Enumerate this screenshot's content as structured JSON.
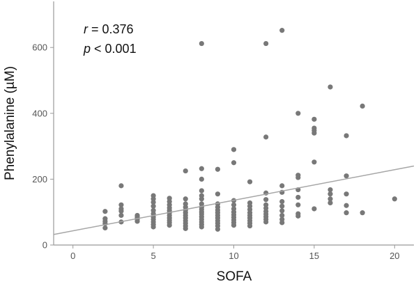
{
  "chart_data": {
    "type": "scatter",
    "xlabel": "SOFA",
    "ylabel": "Phenylalanine (µM)",
    "xlim": [
      -1.2,
      21.2
    ],
    "ylim": [
      0,
      740
    ],
    "xticks": [
      0,
      5,
      10,
      15,
      20
    ],
    "yticks": [
      0,
      200,
      400,
      600
    ],
    "grid": false,
    "point_color": "#787878",
    "line_color": "#a6a6a6",
    "annotation": {
      "r_label": "r",
      "r_text": " = 0.376",
      "p_label": "p",
      "p_text": " < 0.001"
    },
    "fit_line": {
      "x": [
        -1.2,
        21.2
      ],
      "y": [
        32,
        240
      ]
    },
    "points": [
      [
        2,
        52
      ],
      [
        2,
        65
      ],
      [
        2,
        72
      ],
      [
        2,
        80
      ],
      [
        2,
        102
      ],
      [
        3,
        70
      ],
      [
        3,
        90
      ],
      [
        3,
        103
      ],
      [
        3,
        110
      ],
      [
        3,
        122
      ],
      [
        3,
        180
      ],
      [
        4,
        72
      ],
      [
        4,
        78
      ],
      [
        4,
        82
      ],
      [
        4,
        86
      ],
      [
        4,
        90
      ],
      [
        5,
        55
      ],
      [
        5,
        62
      ],
      [
        5,
        70
      ],
      [
        5,
        78
      ],
      [
        5,
        85
      ],
      [
        5,
        95
      ],
      [
        5,
        105
      ],
      [
        5,
        118
      ],
      [
        5,
        130
      ],
      [
        5,
        140
      ],
      [
        5,
        150
      ],
      [
        6,
        60
      ],
      [
        6,
        68
      ],
      [
        6,
        75
      ],
      [
        6,
        82
      ],
      [
        6,
        90
      ],
      [
        6,
        98
      ],
      [
        6,
        105
      ],
      [
        6,
        113
      ],
      [
        6,
        122
      ],
      [
        6,
        132
      ],
      [
        6,
        142
      ],
      [
        7,
        50
      ],
      [
        7,
        58
      ],
      [
        7,
        66
      ],
      [
        7,
        74
      ],
      [
        7,
        82
      ],
      [
        7,
        90
      ],
      [
        7,
        98
      ],
      [
        7,
        106
      ],
      [
        7,
        115
      ],
      [
        7,
        125
      ],
      [
        7,
        140
      ],
      [
        7,
        225
      ],
      [
        8,
        55
      ],
      [
        8,
        62
      ],
      [
        8,
        70
      ],
      [
        8,
        78
      ],
      [
        8,
        86
      ],
      [
        8,
        94
      ],
      [
        8,
        100
      ],
      [
        8,
        108
      ],
      [
        8,
        115
      ],
      [
        8,
        125
      ],
      [
        8,
        140
      ],
      [
        8,
        150
      ],
      [
        8,
        165
      ],
      [
        8,
        200
      ],
      [
        8,
        232
      ],
      [
        8,
        612
      ],
      [
        9,
        48
      ],
      [
        9,
        58
      ],
      [
        9,
        66
      ],
      [
        9,
        74
      ],
      [
        9,
        82
      ],
      [
        9,
        90
      ],
      [
        9,
        98
      ],
      [
        9,
        106
      ],
      [
        9,
        115
      ],
      [
        9,
        125
      ],
      [
        9,
        155
      ],
      [
        9,
        230
      ],
      [
        10,
        60
      ],
      [
        10,
        68
      ],
      [
        10,
        76
      ],
      [
        10,
        84
      ],
      [
        10,
        92
      ],
      [
        10,
        100
      ],
      [
        10,
        110
      ],
      [
        10,
        122
      ],
      [
        10,
        135
      ],
      [
        10,
        250
      ],
      [
        10,
        290
      ],
      [
        11,
        58
      ],
      [
        11,
        66
      ],
      [
        11,
        74
      ],
      [
        11,
        82
      ],
      [
        11,
        90
      ],
      [
        11,
        98
      ],
      [
        11,
        108
      ],
      [
        11,
        118
      ],
      [
        11,
        128
      ],
      [
        11,
        192
      ],
      [
        12,
        70
      ],
      [
        12,
        78
      ],
      [
        12,
        86
      ],
      [
        12,
        94
      ],
      [
        12,
        102
      ],
      [
        12,
        112
      ],
      [
        12,
        122
      ],
      [
        12,
        138
      ],
      [
        12,
        158
      ],
      [
        12,
        328
      ],
      [
        12,
        612
      ],
      [
        13,
        68
      ],
      [
        13,
        78
      ],
      [
        13,
        90
      ],
      [
        13,
        104
      ],
      [
        13,
        118
      ],
      [
        13,
        132
      ],
      [
        13,
        160
      ],
      [
        13,
        180
      ],
      [
        13,
        652
      ],
      [
        14,
        88
      ],
      [
        14,
        95
      ],
      [
        14,
        122
      ],
      [
        14,
        145
      ],
      [
        14,
        168
      ],
      [
        14,
        205
      ],
      [
        14,
        212
      ],
      [
        14,
        400
      ],
      [
        15,
        110
      ],
      [
        15,
        252
      ],
      [
        15,
        340
      ],
      [
        15,
        348
      ],
      [
        15,
        355
      ],
      [
        15,
        382
      ],
      [
        16,
        128
      ],
      [
        16,
        140
      ],
      [
        16,
        155
      ],
      [
        16,
        168
      ],
      [
        16,
        480
      ],
      [
        17,
        98
      ],
      [
        17,
        120
      ],
      [
        17,
        155
      ],
      [
        17,
        210
      ],
      [
        17,
        332
      ],
      [
        18,
        98
      ],
      [
        18,
        422
      ],
      [
        20,
        140
      ]
    ]
  }
}
